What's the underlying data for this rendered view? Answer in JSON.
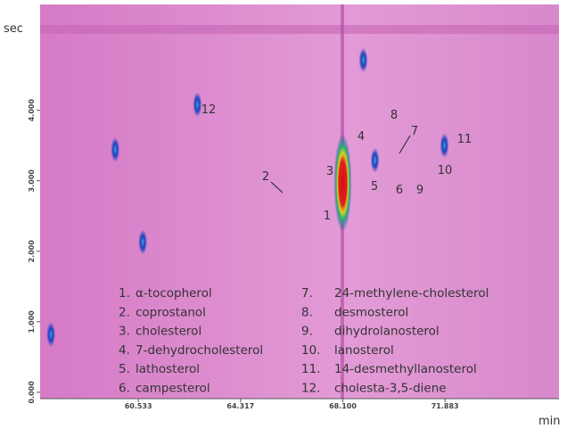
{
  "chart_data": {
    "type": "scatter",
    "xlabel": "min",
    "ylabel": "sec",
    "xlim": [
      56.9,
      76.1
    ],
    "ylim": [
      -0.09,
      5.5
    ],
    "xticks": [
      60.533,
      64.317,
      {
        "value": 68.1,
        "label": "68.100"
      },
      71.883
    ],
    "yticks": [
      {
        "value": 0,
        "label": "0.000"
      },
      {
        "value": 1,
        "label": "1.000"
      },
      {
        "value": 2,
        "label": "2.000"
      },
      {
        "value": 3,
        "label": "3.000"
      },
      {
        "value": 4,
        "label": "4.000"
      }
    ],
    "x": [
      68.1,
      68.86,
      69.29,
      71.86,
      62.72,
      59.68,
      60.7,
      57.3
    ],
    "values": [
      2.97,
      4.71,
      3.29,
      3.5,
      4.08,
      3.44,
      2.13,
      0.82
    ],
    "color": "#1f3fbf",
    "peak_labels": [
      "1",
      "2",
      "3",
      "4",
      "5",
      "6",
      "7",
      "8",
      "9",
      "10",
      "11",
      "12"
    ],
    "legend": [
      {
        "number": "1.",
        "name": "α-tocopherol"
      },
      {
        "number": "2.",
        "name": "coprostanol"
      },
      {
        "number": "3.",
        "name": "cholesterol"
      },
      {
        "number": "4.",
        "name": "7-dehydrocholesterol"
      },
      {
        "number": "5.",
        "name": "lathosterol"
      },
      {
        "number": "6.",
        "name": "campesterol"
      },
      {
        "number": "7.",
        "name": "24-methylene-cholesterol"
      },
      {
        "number": "8.",
        "name": "desmosterol"
      },
      {
        "number": "9.",
        "name": "dihydrolanosterol"
      },
      {
        "number": "10.",
        "name": "lanosterol"
      },
      {
        "number": "11.",
        "name": "14-desmethyllanosterol"
      },
      {
        "number": "12.",
        "name": "cholesta-3,5-diene"
      }
    ]
  }
}
